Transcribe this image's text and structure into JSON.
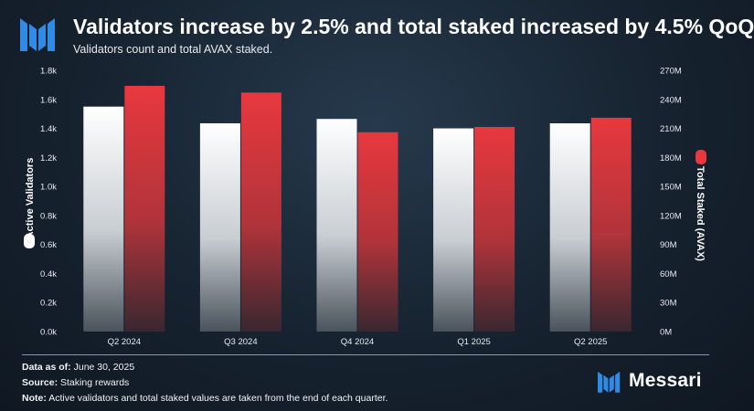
{
  "header": {
    "title": "Validators increase by 2.5% and total staked increased by 4.5% QoQ",
    "subtitle": "Validators count and total AVAX staked."
  },
  "chart_data": {
    "type": "bar",
    "categories": [
      "Q2 2024",
      "Q3 2024",
      "Q4 2024",
      "Q1 2025",
      "Q2 2025"
    ],
    "series": [
      {
        "name": "Active Validators",
        "axis": "left",
        "color": "#ffffff",
        "values": [
          1550,
          1435,
          1465,
          1400,
          1435
        ]
      },
      {
        "name": "Total Staked (AVAX)",
        "axis": "right",
        "color": "#e8383e",
        "values": [
          254000000,
          247000000,
          206000000,
          211500000,
          221000000
        ]
      }
    ],
    "left_axis": {
      "label": "Active Validators",
      "min": 0,
      "max": 1800,
      "ticks": [
        "0.0k",
        "0.2k",
        "0.4k",
        "0.6k",
        "0.8k",
        "1.0k",
        "1.2k",
        "1.4k",
        "1.6k",
        "1.8k"
      ]
    },
    "right_axis": {
      "label": "Total Staked (AVAX)",
      "min": 0,
      "max": 270000000,
      "ticks": [
        "0M",
        "30M",
        "60M",
        "90M",
        "120M",
        "150M",
        "180M",
        "210M",
        "240M",
        "270M"
      ]
    },
    "grid": false,
    "legend": "axis-labels"
  },
  "footer": {
    "date_label": "Data as of:",
    "date_value": "June 30, 2025",
    "source_label": "Source:",
    "source_value": "Staking rewards",
    "note_label": "Note:",
    "note_value": "Active validators and total staked values are taken from the end of each quarter."
  },
  "brand": {
    "name": "Messari",
    "accent": "#2b7fd8"
  }
}
